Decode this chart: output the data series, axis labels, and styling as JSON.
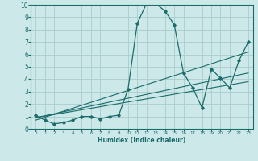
{
  "xlabel": "Humidex (Indice chaleur)",
  "bg_color": "#cce8e8",
  "grid_color": "#aacccc",
  "line_color": "#1a6b6b",
  "xlim": [
    -0.5,
    23.5
  ],
  "ylim": [
    0,
    10
  ],
  "xticks": [
    0,
    1,
    2,
    3,
    4,
    5,
    6,
    7,
    8,
    9,
    10,
    11,
    12,
    13,
    14,
    15,
    16,
    17,
    18,
    19,
    20,
    21,
    22,
    23
  ],
  "yticks": [
    0,
    1,
    2,
    3,
    4,
    5,
    6,
    7,
    8,
    9,
    10
  ],
  "curve_x": [
    0,
    1,
    2,
    3,
    4,
    5,
    6,
    7,
    8,
    9,
    10,
    11,
    12,
    13,
    14,
    15,
    16,
    17,
    18,
    19,
    20,
    21,
    22,
    23
  ],
  "curve_y": [
    1.1,
    0.7,
    0.4,
    0.5,
    0.7,
    1.0,
    1.0,
    0.8,
    1.0,
    1.1,
    3.2,
    8.5,
    10.1,
    10.1,
    9.5,
    8.4,
    4.5,
    3.3,
    1.7,
    4.8,
    4.1,
    3.3,
    5.5,
    7.0
  ],
  "line1_x": [
    0,
    23
  ],
  "line1_y": [
    0.9,
    3.8
  ],
  "line2_x": [
    0,
    23
  ],
  "line2_y": [
    0.9,
    4.5
  ],
  "line3_x": [
    0,
    23
  ],
  "line3_y": [
    0.7,
    6.2
  ]
}
